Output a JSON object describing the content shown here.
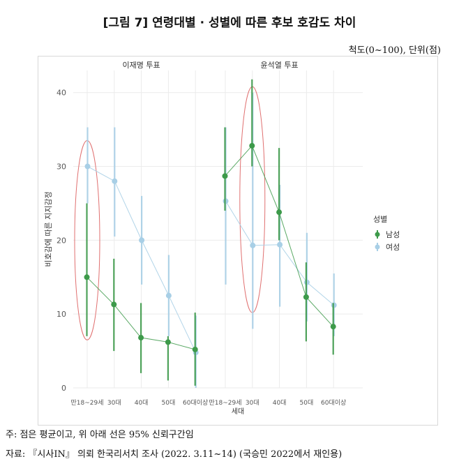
{
  "header": {
    "title": "[그림 7] 연령대별 · 성별에 따른 후보 호감도 차이",
    "scale_note": "척도(0~100), 단위(점)"
  },
  "notes": {
    "line1": "주: 점은 평균이고, 위 아래 선은 95% 신뢰구간임",
    "line2": "자료: 『시사IN』 의뢰 한국리서치 조사 (2022. 3.11~14) (국승민 2022에서 재인용)"
  },
  "colors": {
    "male": "#3d9a4a",
    "female": "#a8cfe6",
    "highlight": "#e07070",
    "grid": "#ebebeb"
  },
  "chart_data": {
    "type": "scatter",
    "ylabel": "비호감에 따른 지지감정",
    "xlabel": "세대",
    "ylim": [
      0,
      43
    ],
    "yticks": [
      0,
      10,
      20,
      30,
      40
    ],
    "categories": [
      "만18~29세",
      "30대",
      "40대",
      "50대",
      "60대이상"
    ],
    "legend": {
      "title": "성별",
      "position": "right",
      "entries": [
        "남성",
        "여성"
      ]
    },
    "grid": true,
    "panels": [
      {
        "name": "이재명 투표",
        "series": [
          {
            "name": "남성",
            "values": [
              15.0,
              11.3,
              6.8,
              6.2,
              5.2
            ],
            "lower": [
              7.0,
              5.0,
              2.0,
              1.0,
              0.3
            ],
            "upper": [
              25.0,
              17.5,
              11.5,
              7.0,
              10.2
            ]
          },
          {
            "name": "여성",
            "values": [
              30.0,
              28.0,
              20.0,
              12.5,
              4.8
            ],
            "lower": [
              25.0,
              20.5,
              14.0,
              7.0,
              0.0
            ],
            "upper": [
              35.3,
              35.3,
              26.0,
              18.0,
              9.8
            ]
          }
        ]
      },
      {
        "name": "윤석열 투표",
        "series": [
          {
            "name": "남성",
            "values": [
              28.7,
              32.8,
              23.8,
              12.3,
              8.3
            ],
            "lower": [
              24.0,
              30.0,
              20.0,
              6.3,
              4.5
            ],
            "upper": [
              35.3,
              41.8,
              32.5,
              17.0,
              11.5
            ]
          },
          {
            "name": "여성",
            "values": [
              25.3,
              19.3,
              19.4,
              14.3,
              11.2
            ],
            "lower": [
              14.0,
              8.0,
              11.0,
              9.0,
              7.0
            ],
            "upper": [
              35.3,
              40.0,
              27.5,
              21.0,
              15.5
            ]
          }
        ]
      }
    ],
    "highlights": [
      {
        "panel": 0,
        "category": "만18~29세",
        "ymin": 6.5,
        "ymax": 33.5
      },
      {
        "panel": 1,
        "category": "30대",
        "ymin": 10.2,
        "ymax": 40.8
      }
    ]
  }
}
